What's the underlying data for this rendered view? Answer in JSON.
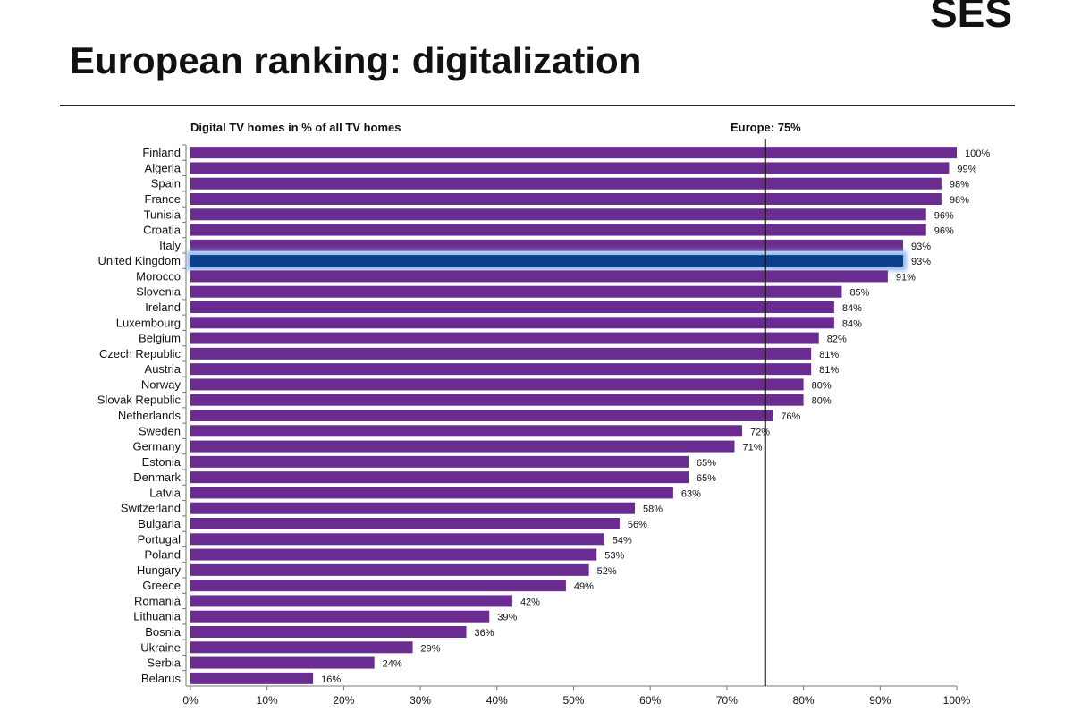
{
  "logo": "SES",
  "chart_data": {
    "type": "bar",
    "orientation": "horizontal",
    "title": "European ranking: digitalization",
    "subtitle": "Digital TV homes in % of all TV homes",
    "categories": [
      "Finland",
      "Algeria",
      "Spain",
      "France",
      "Tunisia",
      "Croatia",
      "Italy",
      "United Kingdom",
      "Morocco",
      "Slovenia",
      "Ireland",
      "Luxembourg",
      "Belgium",
      "Czech Republic",
      "Austria",
      "Norway",
      "Slovak Republic",
      "Netherlands",
      "Sweden",
      "Germany",
      "Estonia",
      "Denmark",
      "Latvia",
      "Switzerland",
      "Bulgaria",
      "Portugal",
      "Poland",
      "Hungary",
      "Greece",
      "Romania",
      "Lithuania",
      "Bosnia",
      "Ukraine",
      "Serbia",
      "Belarus"
    ],
    "values": [
      100,
      99,
      98,
      98,
      96,
      96,
      93,
      93,
      91,
      85,
      84,
      84,
      82,
      81,
      81,
      80,
      80,
      76,
      72,
      71,
      65,
      65,
      63,
      58,
      56,
      54,
      53,
      52,
      49,
      42,
      39,
      36,
      29,
      24,
      16
    ],
    "value_labels": [
      "100%",
      "99%",
      "98%",
      "98%",
      "96%",
      "96%",
      "93%",
      "93%",
      "91%",
      "85%",
      "84%",
      "84%",
      "82%",
      "81%",
      "81%",
      "80%",
      "80%",
      "76%",
      "72%",
      "71%",
      "65%",
      "65%",
      "63%",
      "58%",
      "56%",
      "54%",
      "53%",
      "52%",
      "49%",
      "42%",
      "39%",
      "36%",
      "29%",
      "24%",
      "16%"
    ],
    "color": "#6b2c91",
    "highlight": {
      "category": "United Kingdom",
      "color": "#0b3f8c"
    },
    "xlim": [
      0,
      100
    ],
    "xticks": [
      {
        "value": 0,
        "label": "0%"
      },
      {
        "value": 10,
        "label": "10%"
      },
      {
        "value": 20,
        "label": "20%"
      },
      {
        "value": 30,
        "label": "30%"
      },
      {
        "value": 40,
        "label": "40%"
      },
      {
        "value": 50,
        "label": "50%"
      },
      {
        "value": 60,
        "label": "60%"
      },
      {
        "value": 70,
        "label": "70%"
      },
      {
        "value": 80,
        "label": "80%"
      },
      {
        "value": 90,
        "label": "90%"
      },
      {
        "value": 100,
        "label": "100%"
      }
    ],
    "reference_line": {
      "value": 75,
      "label": "Europe: 75%"
    }
  }
}
